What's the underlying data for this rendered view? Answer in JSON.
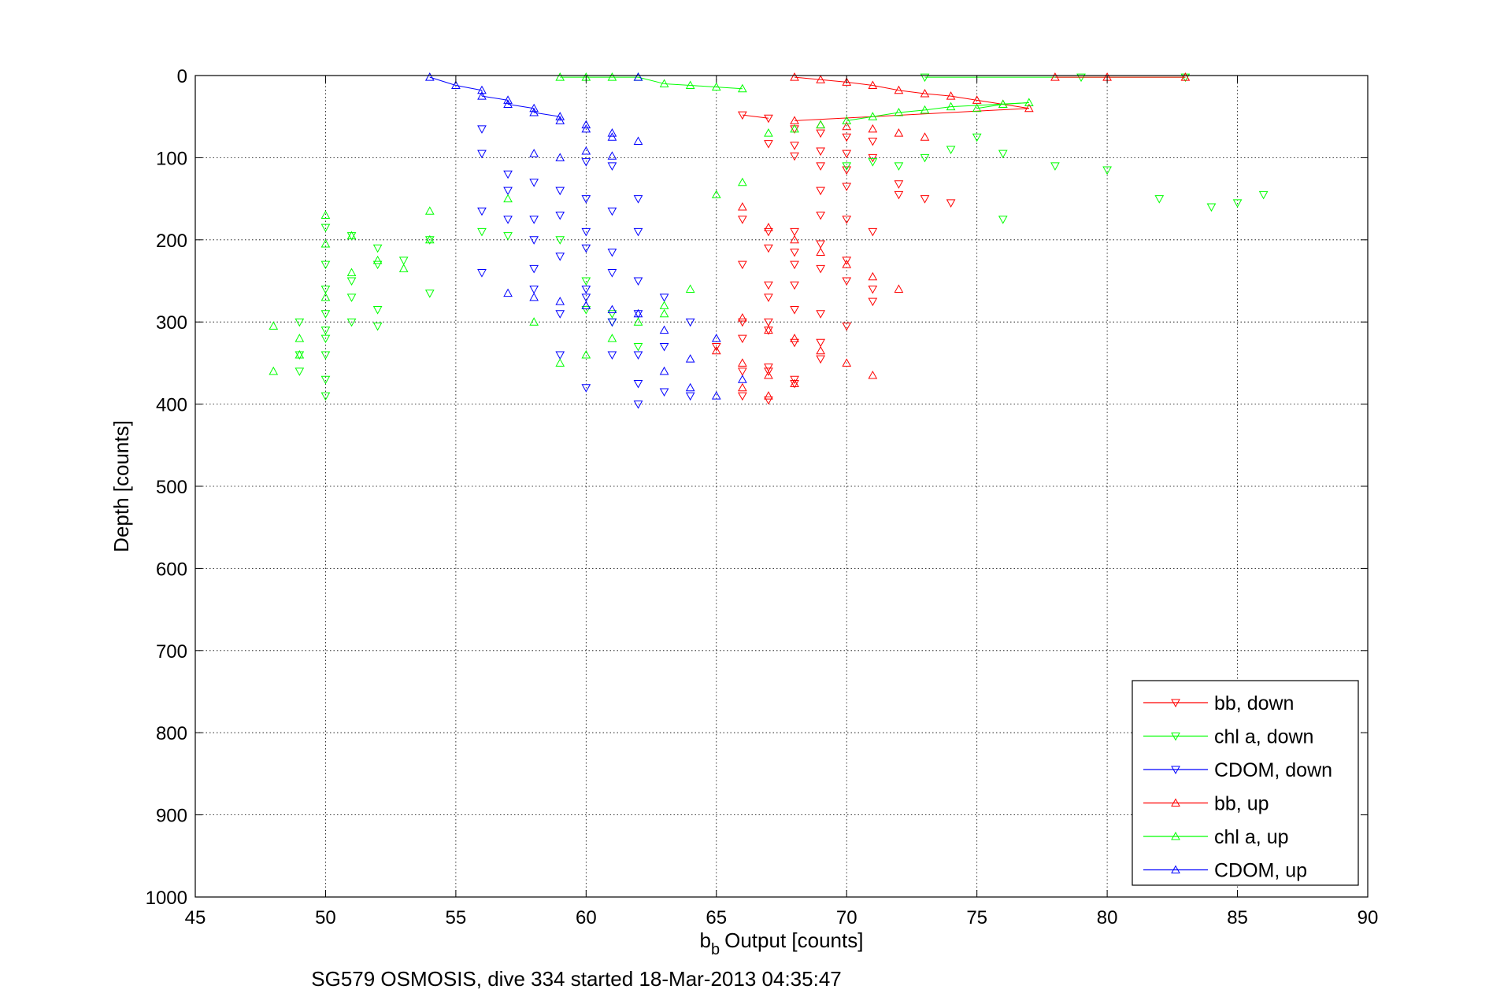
{
  "chart_data": {
    "type": "scatter",
    "title": "",
    "xlabel": "Output [counts]",
    "xlabel_prefix": "b",
    "xlabel_subscript": "b",
    "ylabel": "Depth [counts]",
    "caption": "SG579 OSMOSIS, dive 334 started 18-Mar-2013 04:35:47",
    "xlim": [
      45,
      90
    ],
    "ylim": [
      0,
      1000
    ],
    "y_reversed": true,
    "xticks": [
      "45",
      "50",
      "55",
      "60",
      "65",
      "70",
      "75",
      "80",
      "85",
      "90"
    ],
    "yticks": [
      "0",
      "100",
      "200",
      "300",
      "400",
      "500",
      "600",
      "700",
      "800",
      "900",
      "1000"
    ],
    "grid": true,
    "legend_position": "lower-right",
    "series": [
      {
        "name": "bb, down",
        "color": "#ff0000",
        "marker": "triangle-down",
        "x": [
          66,
          67,
          67,
          68,
          68,
          68,
          69,
          69,
          69,
          69,
          70,
          70,
          70,
          70,
          70,
          71,
          71,
          72,
          72,
          73,
          74,
          68,
          69,
          69,
          70,
          71,
          66,
          67,
          67,
          68,
          68,
          69,
          70,
          66,
          67,
          67,
          68,
          68,
          69,
          70,
          71,
          71,
          66,
          67,
          67,
          68,
          69,
          66,
          67,
          68,
          69,
          65,
          66,
          67,
          68,
          66,
          67
        ],
        "y": [
          48,
          52,
          83,
          65,
          85,
          98,
          70,
          92,
          110,
          140,
          75,
          95,
          115,
          135,
          175,
          80,
          100,
          132,
          145,
          150,
          155,
          190,
          170,
          205,
          225,
          190,
          175,
          190,
          210,
          215,
          230,
          235,
          250,
          230,
          255,
          270,
          255,
          285,
          290,
          305,
          260,
          275,
          300,
          300,
          310,
          325,
          325,
          320,
          360,
          375,
          345,
          330,
          360,
          355,
          370,
          390,
          395
        ]
      },
      {
        "name": "chl a, down",
        "color": "#00ff00",
        "marker": "triangle-down",
        "x": [
          50,
          51,
          52,
          52,
          53,
          54,
          49,
          50,
          50,
          50,
          51,
          51,
          50,
          50,
          50,
          49,
          49,
          50,
          50,
          51,
          52,
          52,
          54,
          56,
          57,
          59,
          60,
          60,
          61,
          61,
          62,
          70,
          71,
          72,
          73,
          74,
          75,
          76,
          76,
          78,
          80,
          82,
          84,
          85,
          86,
          83,
          79,
          73
        ],
        "y": [
          185,
          195,
          210,
          230,
          225,
          200,
          300,
          230,
          260,
          290,
          250,
          270,
          310,
          320,
          340,
          340,
          360,
          370,
          390,
          300,
          285,
          305,
          265,
          190,
          195,
          200,
          250,
          285,
          300,
          290,
          330,
          110,
          105,
          110,
          100,
          90,
          75,
          95,
          175,
          110,
          115,
          150,
          160,
          155,
          145,
          2,
          2,
          2
        ]
      },
      {
        "name": "CDOM, down",
        "color": "#0000ff",
        "marker": "triangle-down",
        "x": [
          56,
          56,
          56,
          57,
          57,
          58,
          58,
          58,
          59,
          59,
          59,
          59,
          60,
          60,
          60,
          60,
          60,
          61,
          61,
          61,
          61,
          61,
          62,
          62,
          62,
          62,
          62,
          62,
          63,
          63,
          63,
          64,
          64,
          58,
          59,
          60,
          60,
          61,
          62,
          57,
          58,
          56
        ],
        "y": [
          65,
          95,
          165,
          140,
          175,
          130,
          200,
          175,
          140,
          170,
          220,
          290,
          105,
          150,
          190,
          260,
          380,
          110,
          165,
          240,
          300,
          340,
          150,
          190,
          290,
          340,
          375,
          400,
          270,
          330,
          385,
          300,
          390,
          235,
          340,
          210,
          270,
          215,
          250,
          120,
          260,
          240
        ]
      },
      {
        "name": "bb, up",
        "color": "#ff0000",
        "marker": "triangle-up",
        "x": [
          68,
          69,
          70,
          71,
          72,
          73,
          74,
          75,
          76,
          77,
          68,
          69,
          70,
          71,
          72,
          73,
          66,
          67,
          68,
          69,
          70,
          71,
          72,
          66,
          67,
          68,
          69,
          70,
          71,
          65,
          66,
          67,
          68,
          66,
          67,
          83,
          80,
          78
        ],
        "y": [
          2,
          5,
          8,
          12,
          18,
          22,
          25,
          30,
          35,
          40,
          55,
          60,
          62,
          65,
          70,
          75,
          160,
          185,
          200,
          215,
          230,
          245,
          260,
          295,
          310,
          320,
          335,
          350,
          365,
          335,
          350,
          365,
          375,
          380,
          390,
          2,
          2,
          2
        ]
      },
      {
        "name": "chl a, up",
        "color": "#00ff00",
        "marker": "triangle-up",
        "x": [
          48,
          48,
          49,
          49,
          50,
          50,
          50,
          51,
          51,
          52,
          53,
          54,
          54,
          57,
          58,
          59,
          60,
          61,
          62,
          63,
          64,
          65,
          66,
          63,
          62,
          61,
          60,
          59,
          75,
          76,
          77,
          74,
          73,
          72,
          71,
          70,
          69,
          68,
          67,
          66,
          65,
          64,
          63
        ],
        "y": [
          305,
          360,
          340,
          320,
          170,
          205,
          270,
          195,
          240,
          225,
          235,
          165,
          200,
          150,
          300,
          2,
          2,
          2,
          2,
          10,
          12,
          14,
          16,
          280,
          300,
          320,
          340,
          350,
          40,
          35,
          33,
          38,
          42,
          45,
          50,
          55,
          60,
          65,
          70,
          130,
          145,
          260,
          290
        ]
      },
      {
        "name": "CDOM, up",
        "color": "#0000ff",
        "marker": "triangle-up",
        "x": [
          54,
          55,
          56,
          56,
          57,
          57,
          58,
          58,
          59,
          59,
          60,
          60,
          61,
          61,
          62,
          62,
          63,
          63,
          64,
          64,
          65,
          65,
          66,
          57,
          58,
          59,
          60,
          61,
          62,
          58,
          59,
          60,
          61
        ],
        "y": [
          2,
          12,
          18,
          25,
          30,
          35,
          40,
          45,
          50,
          55,
          60,
          65,
          70,
          75,
          2,
          80,
          310,
          360,
          345,
          380,
          320,
          390,
          370,
          265,
          270,
          275,
          280,
          285,
          290,
          95,
          100,
          92,
          98
        ]
      }
    ]
  }
}
